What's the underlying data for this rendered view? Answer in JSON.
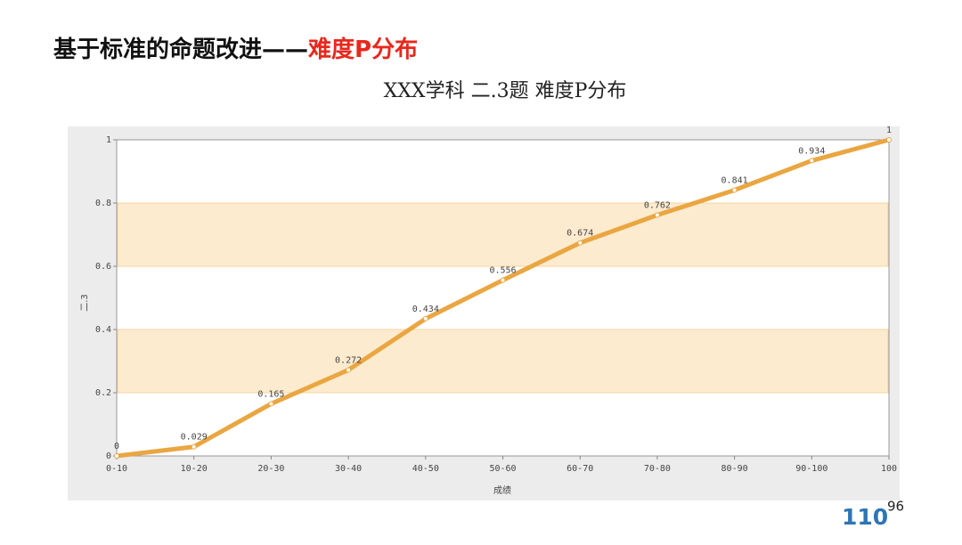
{
  "slide": {
    "heading_main": "基于标准的命题改进——",
    "heading_accent": "难度P分布",
    "page_number": "110",
    "page_superscript": "96"
  },
  "chart_data": {
    "type": "line",
    "title": "XXX学科   二.3题   难度P分布",
    "x_label": "成绩",
    "y_label": "二.3",
    "categories": [
      "0-10",
      "10-20",
      "20-30",
      "30-40",
      "40-50",
      "50-60",
      "60-70",
      "70-80",
      "80-90",
      "90-100",
      "100"
    ],
    "values": [
      0,
      0.029,
      0.165,
      0.272,
      0.434,
      0.556,
      0.674,
      0.762,
      0.841,
      0.934,
      1
    ],
    "color": "#eaa641",
    "ylim": [
      0,
      1
    ],
    "yticks": [
      0,
      0.2,
      0.4,
      0.6,
      0.8,
      1
    ],
    "bands": true,
    "band_color": "#fdebcf",
    "data_labels": true
  }
}
